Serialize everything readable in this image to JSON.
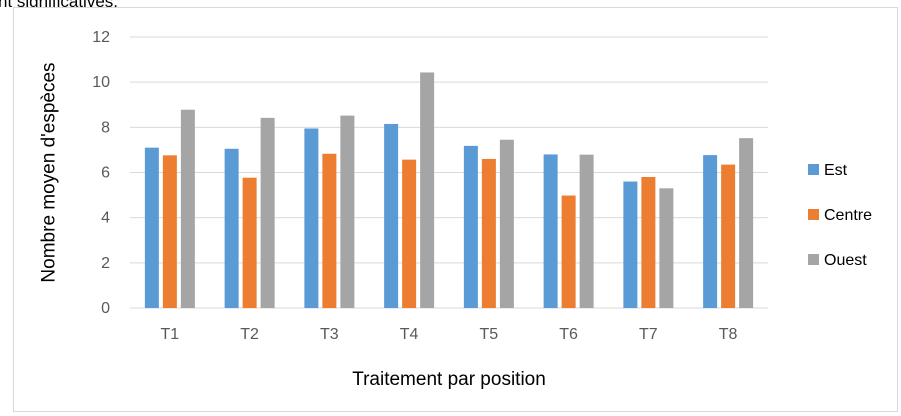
{
  "header": {
    "partial_text": "nt significatives."
  },
  "chart_data": {
    "type": "bar",
    "categories": [
      "T1",
      "T2",
      "T3",
      "T4",
      "T5",
      "T6",
      "T7",
      "T8"
    ],
    "series": [
      {
        "name": "Est",
        "color": "#5b9bd5",
        "values": [
          7.1,
          7.05,
          7.95,
          8.15,
          7.18,
          6.8,
          5.6,
          6.77
        ]
      },
      {
        "name": "Centre",
        "color": "#ed7d31",
        "values": [
          6.76,
          5.77,
          6.83,
          6.57,
          6.6,
          4.98,
          5.8,
          6.35
        ]
      },
      {
        "name": "Ouest",
        "color": "#a5a5a5",
        "values": [
          8.78,
          8.42,
          8.52,
          10.43,
          7.45,
          6.79,
          5.3,
          7.52
        ]
      }
    ],
    "title": "",
    "xlabel": "Traitement par position",
    "ylabel": "Nombre moyen d'espèces",
    "ylim": [
      0,
      12
    ],
    "yticks": [
      "0",
      "2",
      "4",
      "6",
      "8",
      "10",
      "12"
    ],
    "grid": true,
    "legend_position": "right"
  }
}
